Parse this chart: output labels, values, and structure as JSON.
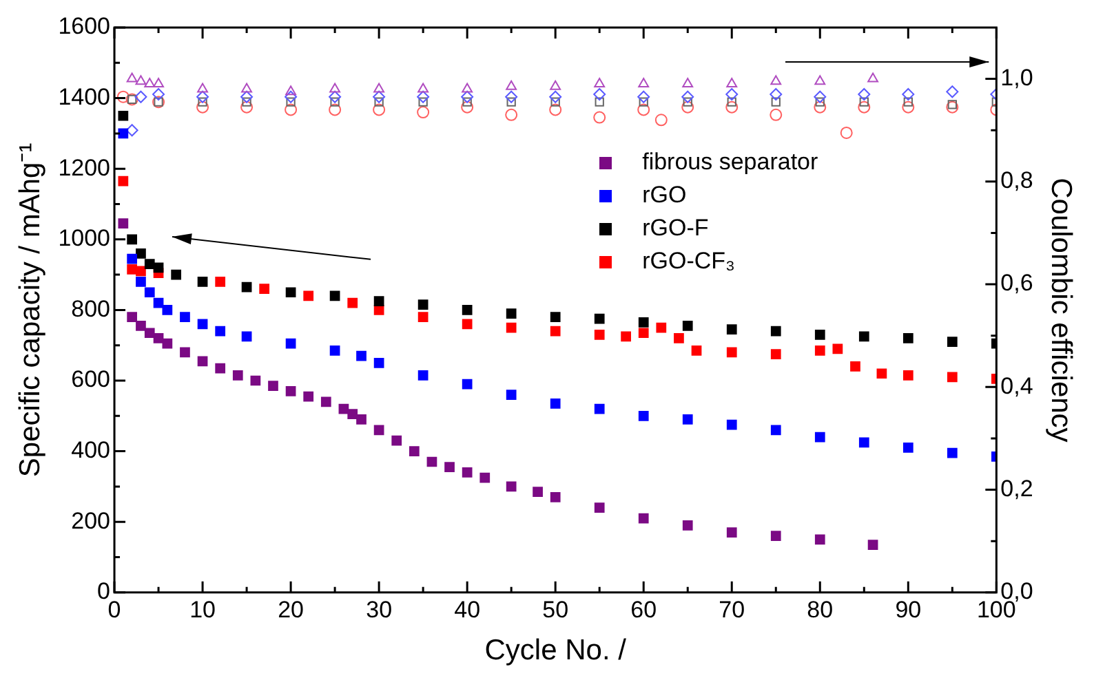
{
  "chart_data": {
    "type": "scatter",
    "xlabel": "Cycle No. /",
    "ylabel": "Specific capacity / mAhg⁻¹",
    "y2label": "Coulombic efficiency",
    "xlim": [
      0,
      100
    ],
    "xticks": [
      0,
      10,
      20,
      30,
      40,
      50,
      60,
      70,
      80,
      90,
      100
    ],
    "ylim": [
      0,
      1600
    ],
    "yticks": [
      0,
      200,
      400,
      600,
      800,
      1000,
      1200,
      1400,
      1600
    ],
    "y2lim": [
      0,
      1.1
    ],
    "y2ticks": [
      {
        "value": 0,
        "label": "0,0"
      },
      {
        "value": 0.2,
        "label": "0,2"
      },
      {
        "value": 0.4,
        "label": "0,4"
      },
      {
        "value": 0.6,
        "label": "0,6"
      },
      {
        "value": 0.8,
        "label": "0,8"
      },
      {
        "value": 1.0,
        "label": "1,0"
      }
    ],
    "legend": "top right",
    "grid": false,
    "series": [
      {
        "name": "fibrous separator",
        "color": "#7b0a84",
        "marker": "square",
        "x": [
          1,
          2,
          3,
          4,
          5,
          6,
          8,
          10,
          12,
          14,
          16,
          18,
          20,
          22,
          24,
          26,
          27,
          28,
          30,
          32,
          34,
          36,
          38,
          40,
          42,
          45,
          48,
          50,
          55,
          60,
          65,
          70,
          75,
          80,
          86
        ],
        "values": [
          1045,
          780,
          755,
          735,
          720,
          705,
          680,
          655,
          635,
          615,
          600,
          585,
          570,
          555,
          540,
          520,
          505,
          490,
          460,
          430,
          400,
          370,
          355,
          340,
          325,
          300,
          285,
          270,
          240,
          210,
          190,
          170,
          160,
          150,
          135
        ]
      },
      {
        "name": "rGO",
        "color": "#0000ff",
        "marker": "square",
        "x": [
          1,
          2,
          3,
          4,
          5,
          6,
          8,
          10,
          12,
          15,
          20,
          25,
          28,
          30,
          35,
          40,
          45,
          50,
          55,
          60,
          65,
          70,
          75,
          80,
          85,
          90,
          95,
          100
        ],
        "values": [
          1300,
          945,
          880,
          850,
          820,
          800,
          780,
          760,
          740,
          725,
          705,
          685,
          670,
          650,
          615,
          590,
          560,
          535,
          520,
          500,
          490,
          475,
          460,
          440,
          425,
          410,
          395,
          385
        ]
      },
      {
        "name": "rGO-F",
        "color": "#000000",
        "marker": "square",
        "x": [
          1,
          2,
          3,
          4,
          5,
          7,
          10,
          15,
          20,
          25,
          30,
          35,
          40,
          45,
          50,
          55,
          60,
          65,
          70,
          75,
          80,
          85,
          90,
          95,
          100
        ],
        "values": [
          1350,
          1000,
          960,
          930,
          920,
          900,
          880,
          865,
          850,
          840,
          825,
          815,
          800,
          790,
          780,
          775,
          765,
          755,
          745,
          740,
          730,
          725,
          720,
          710,
          705
        ]
      },
      {
        "name": "rGO-CF₃",
        "color": "#ff0000",
        "marker": "square",
        "x": [
          1,
          2,
          3,
          5,
          12,
          17,
          22,
          27,
          30,
          35,
          40,
          45,
          50,
          55,
          58,
          60,
          62,
          64,
          66,
          70,
          75,
          80,
          82,
          84,
          87,
          90,
          95,
          100
        ],
        "values": [
          1165,
          915,
          910,
          905,
          880,
          860,
          840,
          820,
          800,
          780,
          760,
          750,
          740,
          730,
          725,
          735,
          750,
          720,
          685,
          680,
          675,
          685,
          690,
          640,
          620,
          615,
          610,
          605
        ]
      },
      {
        "color": "#b04cc0",
        "marker": "triangle",
        "axis": "y2",
        "x": [
          2,
          3,
          4,
          5,
          10,
          15,
          20,
          25,
          30,
          35,
          40,
          45,
          50,
          55,
          60,
          65,
          70,
          75,
          80,
          86
        ],
        "values": [
          1.0,
          0.995,
          0.99,
          0.99,
          0.98,
          0.98,
          0.975,
          0.98,
          0.98,
          0.98,
          0.98,
          0.985,
          0.985,
          0.99,
          0.99,
          0.99,
          0.99,
          0.995,
          0.995,
          1.0
        ]
      },
      {
        "color": "#5a5aff",
        "marker": "diamond",
        "axis": "y2",
        "x": [
          2,
          3,
          5,
          10,
          15,
          20,
          25,
          30,
          35,
          40,
          45,
          50,
          55,
          60,
          65,
          70,
          75,
          80,
          85,
          90,
          95,
          100
        ],
        "values": [
          0.9,
          0.965,
          0.97,
          0.965,
          0.965,
          0.965,
          0.965,
          0.965,
          0.965,
          0.965,
          0.965,
          0.965,
          0.97,
          0.965,
          0.965,
          0.97,
          0.97,
          0.965,
          0.97,
          0.97,
          0.975,
          0.97
        ]
      },
      {
        "color": "#666666",
        "marker": "square",
        "axis": "y2",
        "x": [
          2,
          5,
          10,
          15,
          20,
          25,
          30,
          35,
          40,
          45,
          50,
          55,
          60,
          65,
          70,
          75,
          80,
          85,
          90,
          95,
          100
        ],
        "values": [
          0.96,
          0.955,
          0.955,
          0.955,
          0.955,
          0.955,
          0.955,
          0.955,
          0.955,
          0.955,
          0.955,
          0.955,
          0.955,
          0.955,
          0.955,
          0.955,
          0.955,
          0.955,
          0.955,
          0.95,
          0.955
        ]
      },
      {
        "color": "#ff6060",
        "marker": "circle",
        "axis": "y2",
        "x": [
          1,
          2,
          5,
          10,
          15,
          20,
          25,
          30,
          35,
          40,
          45,
          50,
          55,
          60,
          62,
          65,
          70,
          75,
          80,
          83,
          85,
          90,
          95,
          100
        ],
        "values": [
          0.965,
          0.96,
          0.955,
          0.945,
          0.945,
          0.94,
          0.94,
          0.94,
          0.935,
          0.945,
          0.93,
          0.94,
          0.925,
          0.94,
          0.92,
          0.945,
          0.945,
          0.93,
          0.945,
          0.895,
          0.945,
          0.945,
          0.945,
          0.94
        ]
      }
    ]
  }
}
